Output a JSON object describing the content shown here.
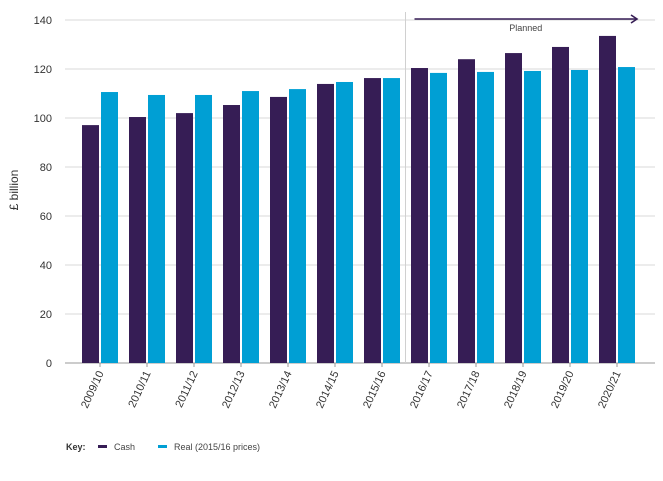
{
  "chart_data": {
    "type": "bar",
    "ylabel": "£ billion",
    "xlabel": "",
    "ylim": [
      0,
      140
    ],
    "yticks": [
      0,
      20,
      40,
      60,
      80,
      100,
      120,
      140
    ],
    "grid": true,
    "categories": [
      "2009/10",
      "2010/11",
      "2011/12",
      "2012/13",
      "2013/14",
      "2014/15",
      "2015/16",
      "2016/17",
      "2017/18",
      "2018/19",
      "2019/20",
      "2020/21"
    ],
    "series": [
      {
        "name": "Cash",
        "color": "#361d55",
        "values": [
          97.1,
          100.4,
          102.0,
          105.3,
          108.6,
          113.9,
          116.3,
          120.4,
          124.0,
          126.5,
          129.0,
          133.5
        ]
      },
      {
        "name": "Real (2015/16 prices)",
        "color": "#009fd4",
        "values": [
          110.6,
          109.4,
          109.4,
          111.0,
          111.8,
          114.7,
          116.3,
          118.4,
          118.8,
          119.2,
          119.6,
          120.8
        ]
      }
    ],
    "annotation": {
      "text": "Planned",
      "from_category": "2016/17",
      "to_category": "2020/21"
    },
    "legend": {
      "title": "Key:",
      "placement": "bottom-left"
    }
  }
}
